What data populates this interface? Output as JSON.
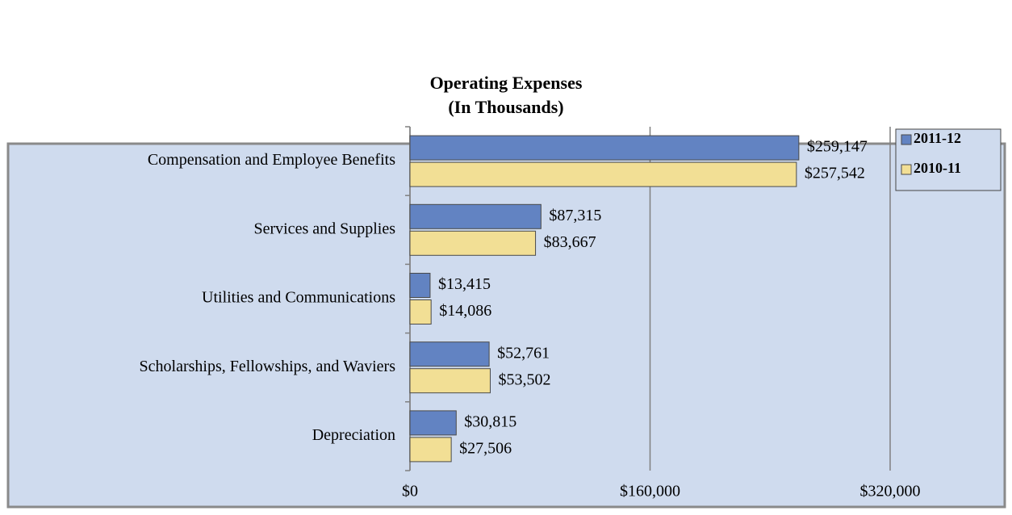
{
  "chart_data": {
    "type": "bar",
    "orientation": "horizontal",
    "title": "Operating Expenses",
    "subtitle": "(In Thousands)",
    "categories": [
      "Compensation and Employee Benefits",
      "Services and Supplies",
      "Utilities and Communications",
      "Scholarships, Fellowships, and Waviers",
      "Depreciation"
    ],
    "series": [
      {
        "name": "2011-12",
        "color": "#6283c2",
        "values": [
          259147,
          87315,
          13415,
          52761,
          30815
        ],
        "value_labels": [
          "$259,147",
          "$87,315",
          "$13,415",
          "$52,761",
          "$30,815"
        ]
      },
      {
        "name": "2010-11",
        "color": "#f2df95",
        "values": [
          257542,
          83667,
          14086,
          53502,
          27506
        ],
        "value_labels": [
          "$257,542",
          "$83,667",
          "$14,086",
          "$53,502",
          "$27,506"
        ]
      }
    ],
    "xlim": [
      0,
      320000
    ],
    "xticks": [
      {
        "value": 0,
        "label": "$0"
      },
      {
        "value": 160000,
        "label": "$160,000"
      },
      {
        "value": 320000,
        "label": "$320,000"
      }
    ],
    "grid": true,
    "legend": "top-right"
  }
}
